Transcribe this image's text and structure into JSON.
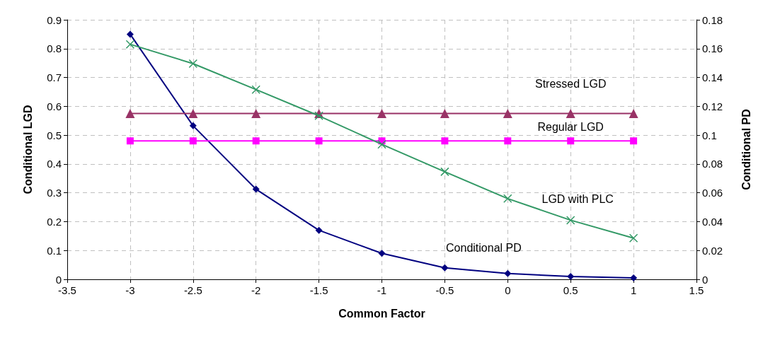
{
  "chart_data": {
    "type": "line",
    "xlabel": "Common Factor",
    "ylabel": "Conditional LGD",
    "y2label": "Conditional PD",
    "x": [
      -3,
      -2.5,
      -2,
      -1.5,
      -1,
      -0.5,
      0,
      0.5,
      1
    ],
    "series": [
      {
        "name": "Conditional PD",
        "color": "#000080",
        "marker": "diamond",
        "axis": "y2",
        "values": [
          0.17,
          0.1065,
          0.0625,
          0.034,
          0.018,
          0.008,
          0.004,
          0.002,
          0.001
        ]
      },
      {
        "name": "LGD with PLC",
        "color": "#339966",
        "marker": "cross",
        "values": [
          0.815,
          0.748,
          0.658,
          0.567,
          0.468,
          0.373,
          0.28,
          0.205,
          0.143
        ]
      },
      {
        "name": "Stressed LGD",
        "color": "#993366",
        "marker": "triangle",
        "values": [
          0.575,
          0.575,
          0.575,
          0.575,
          0.575,
          0.575,
          0.575,
          0.575,
          0.575
        ]
      },
      {
        "name": "Regular LGD",
        "color": "#ff00ff",
        "marker": "square",
        "values": [
          0.48,
          0.48,
          0.48,
          0.48,
          0.48,
          0.48,
          0.48,
          0.48,
          0.48
        ]
      }
    ],
    "xlim": [
      -3.5,
      1.5
    ],
    "xticks": [
      -3.5,
      -3,
      -2.5,
      -2,
      -1.5,
      -1,
      -0.5,
      0,
      0.5,
      1,
      1.5
    ],
    "ylim": [
      0,
      0.9
    ],
    "yticks": [
      0,
      0.1,
      0.2,
      0.3,
      0.4,
      0.5,
      0.6,
      0.7,
      0.8,
      0.9
    ],
    "y2lim": [
      0,
      0.18
    ],
    "y2ticks": [
      0,
      0.02,
      0.04,
      0.06,
      0.08,
      0.1,
      0.12,
      0.14,
      0.16,
      0.18
    ],
    "grid": true,
    "line_style": "solid"
  }
}
